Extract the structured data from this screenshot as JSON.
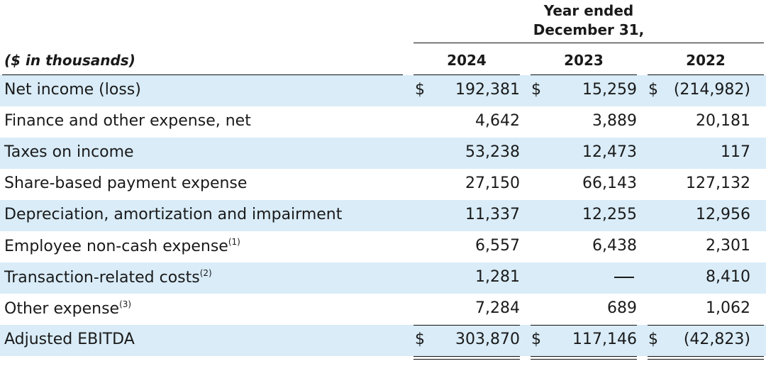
{
  "header": {
    "period_line1": "Year ended",
    "period_line2": "December 31,",
    "units": "($ in thousands)",
    "years": [
      "2024",
      "2023",
      "2022"
    ]
  },
  "rows": [
    {
      "label": "Net income (loss)",
      "note": "",
      "dollar": true,
      "values": [
        "192,381",
        "15,259",
        "(214,982)"
      ]
    },
    {
      "label": "Finance and other expense, net",
      "note": "",
      "dollar": false,
      "values": [
        "4,642",
        "3,889",
        "20,181"
      ]
    },
    {
      "label": "Taxes on income",
      "note": "",
      "dollar": false,
      "values": [
        "53,238",
        "12,473",
        "117"
      ]
    },
    {
      "label": "Share-based payment expense",
      "note": "",
      "dollar": false,
      "values": [
        "27,150",
        "66,143",
        "127,132"
      ]
    },
    {
      "label": "Depreciation, amortization and impairment",
      "note": "",
      "dollar": false,
      "values": [
        "11,337",
        "12,255",
        "12,956"
      ]
    },
    {
      "label": "Employee non-cash expense",
      "note": "(1)",
      "dollar": false,
      "values": [
        "6,557",
        "6,438",
        "2,301"
      ]
    },
    {
      "label": "Transaction-related costs",
      "note": "(2)",
      "dollar": false,
      "values": [
        "1,281",
        "—",
        "8,410"
      ]
    },
    {
      "label": "Other expense",
      "note": "(3)",
      "dollar": false,
      "values": [
        "7,284",
        "689",
        "1,062"
      ]
    },
    {
      "label": "Adjusted EBITDA",
      "note": "",
      "dollar": true,
      "values": [
        "303,870",
        "117,146",
        "(42,823)"
      ]
    }
  ],
  "currency_symbol": "$",
  "colors": {
    "row_shade": "#d9ecf8",
    "text": "#1a1a1a"
  }
}
